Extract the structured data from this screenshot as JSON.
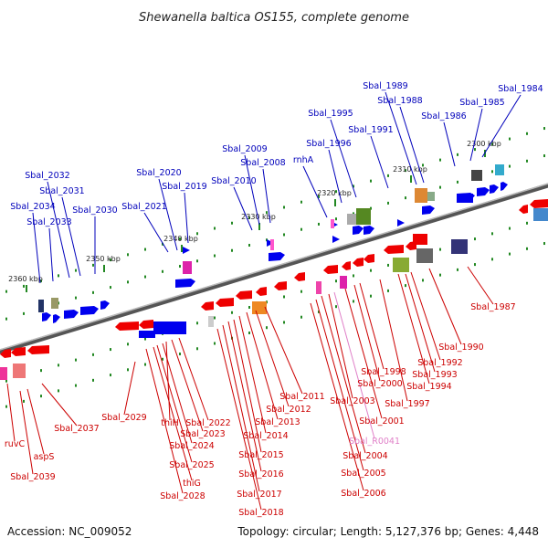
{
  "title": "Shewanella baltica OS155, complete genome",
  "footer": {
    "accession": "Accession: NC_009052",
    "summary": "Topology: circular; Length: 5,127,376 bp; Genes: 4,448"
  },
  "colors": {
    "forward_label": "#0000bb",
    "reverse_label": "#cc0000",
    "rna_label": "#e080c8",
    "forward_gene": "#0000ee",
    "reverse_gene": "#ee0000",
    "tick": "#228822"
  },
  "scale_ticks": [
    {
      "label": "2300 kbp"
    },
    {
      "label": "2310 kbp"
    },
    {
      "label": "2320 kbp"
    },
    {
      "label": "2330 kbp"
    },
    {
      "label": "2340 kbp"
    },
    {
      "label": "2350 kbp"
    },
    {
      "label": "2360 kbp"
    }
  ],
  "forward_labels": [
    {
      "name": "Sbal_1984"
    },
    {
      "name": "Sbal_1985"
    },
    {
      "name": "Sbal_1986"
    },
    {
      "name": "Sbal_1988"
    },
    {
      "name": "Sbal_1989"
    },
    {
      "name": "Sbal_1991"
    },
    {
      "name": "Sbal_1995"
    },
    {
      "name": "Sbal_1996"
    },
    {
      "name": "rnhA"
    },
    {
      "name": "Sbal_2008"
    },
    {
      "name": "Sbal_2009"
    },
    {
      "name": "Sbal_2010"
    },
    {
      "name": "Sbal_2019"
    },
    {
      "name": "Sbal_2020"
    },
    {
      "name": "Sbal_2021"
    },
    {
      "name": "Sbal_2030"
    },
    {
      "name": "Sbal_2031"
    },
    {
      "name": "Sbal_2032"
    },
    {
      "name": "Sbal_2033"
    },
    {
      "name": "Sbal_2034"
    }
  ],
  "reverse_labels": [
    {
      "name": "Sbal_1987"
    },
    {
      "name": "Sbal_1990"
    },
    {
      "name": "Sbal_1992"
    },
    {
      "name": "Sbal_1993"
    },
    {
      "name": "Sbal_1994"
    },
    {
      "name": "Sbal_1997"
    },
    {
      "name": "Sbal_1998"
    },
    {
      "name": "Sbal_2000"
    },
    {
      "name": "Sbal_2001"
    },
    {
      "name": "Sbal_R0041"
    },
    {
      "name": "Sbal_2003"
    },
    {
      "name": "Sbal_2004"
    },
    {
      "name": "Sbal_2005"
    },
    {
      "name": "Sbal_2006"
    },
    {
      "name": "Sbal_2011"
    },
    {
      "name": "Sbal_2012"
    },
    {
      "name": "Sbal_2013"
    },
    {
      "name": "Sbal_2014"
    },
    {
      "name": "Sbal_2015"
    },
    {
      "name": "Sbal_2016"
    },
    {
      "name": "Sbal_2017"
    },
    {
      "name": "Sbal_2018"
    },
    {
      "name": "Sbal_2022"
    },
    {
      "name": "Sbal_2023"
    },
    {
      "name": "thiH"
    },
    {
      "name": "Sbal_2024"
    },
    {
      "name": "Sbal_2025"
    },
    {
      "name": "thiG"
    },
    {
      "name": "Sbal_2028"
    },
    {
      "name": "Sbal_2029"
    },
    {
      "name": "Sbal_2037"
    },
    {
      "name": "aspS"
    },
    {
      "name": "ruvC"
    },
    {
      "name": "Sbal_2039"
    }
  ]
}
